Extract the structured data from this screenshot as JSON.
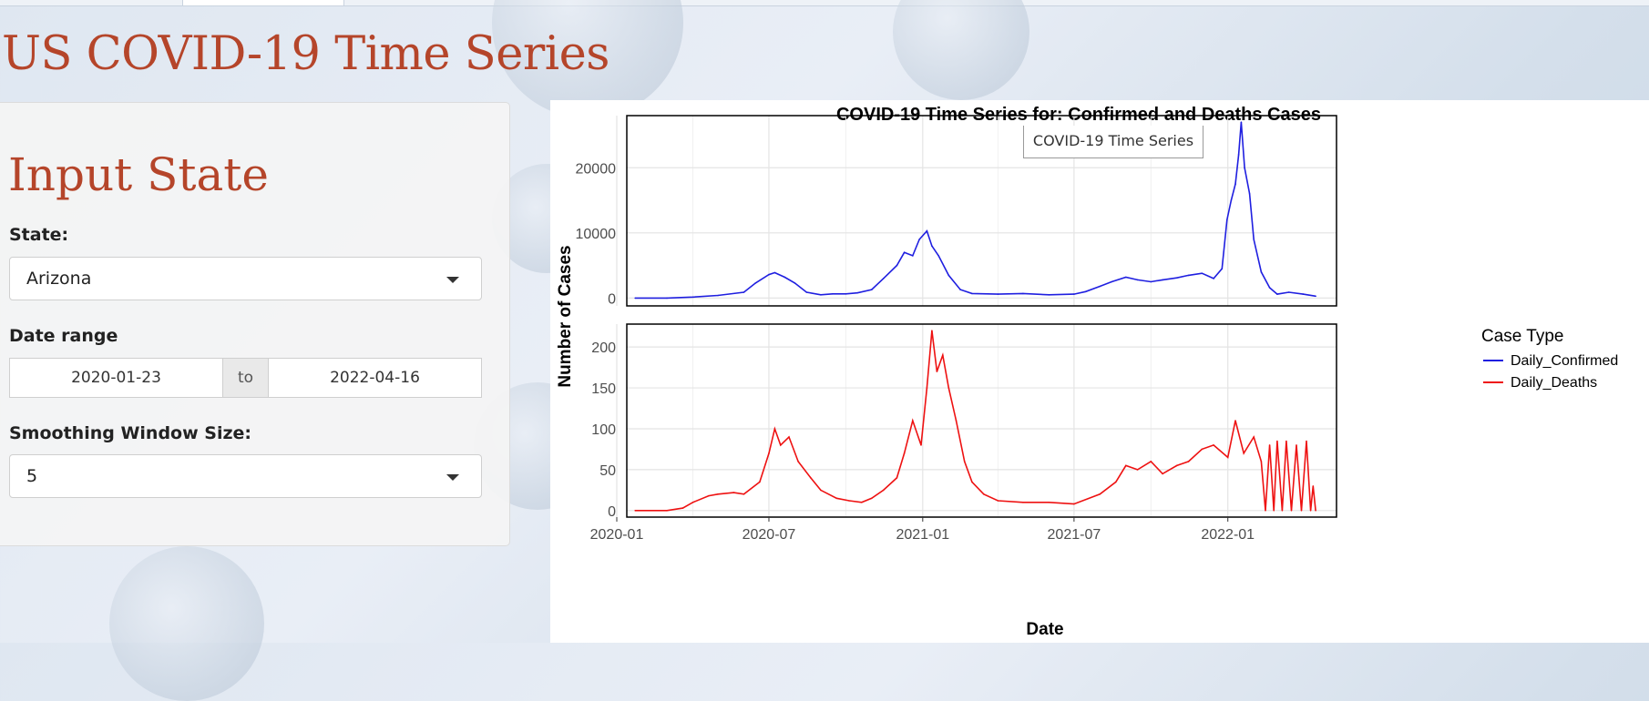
{
  "app": {
    "title": "US COVID-19 Time Series"
  },
  "sidebar": {
    "heading": "Input State",
    "state_label": "State:",
    "state_value": "Arizona",
    "date_range_label": "Date range",
    "date_start": "2020-01-23",
    "date_to": "to",
    "date_end": "2022-04-16",
    "smoothing_label": "Smoothing Window Size:",
    "smoothing_value": "5"
  },
  "tooltip": {
    "text": "COVID-19 Time Series"
  },
  "chart_data": {
    "type": "line",
    "title": "COVID-19 Time Series for: Confirmed and Deaths Cases",
    "xlabel": "Date",
    "ylabel": "Number of Cases",
    "x_ticks": [
      "2020-01",
      "2020-07",
      "2021-01",
      "2021-07",
      "2022-01"
    ],
    "xlim": [
      "2020-01-23",
      "2022-04-16"
    ],
    "grid": true,
    "legend_position": "right",
    "legend_title": "Case Type",
    "colors": {
      "Daily_Confirmed": "#1f1fe0",
      "Daily_Deaths": "#ee1111"
    },
    "panels": [
      {
        "series": "Daily_Confirmed",
        "ylim": [
          -1200,
          28000
        ],
        "y_ticks": [
          0,
          10000,
          20000
        ],
        "points": [
          [
            "2020-01-23",
            0
          ],
          [
            "2020-03-01",
            0
          ],
          [
            "2020-04-01",
            150
          ],
          [
            "2020-05-01",
            400
          ],
          [
            "2020-06-01",
            900
          ],
          [
            "2020-06-15",
            2300
          ],
          [
            "2020-07-01",
            3600
          ],
          [
            "2020-07-08",
            3900
          ],
          [
            "2020-07-20",
            3200
          ],
          [
            "2020-08-01",
            2300
          ],
          [
            "2020-08-15",
            900
          ],
          [
            "2020-09-01",
            500
          ],
          [
            "2020-09-15",
            650
          ],
          [
            "2020-10-01",
            650
          ],
          [
            "2020-10-15",
            800
          ],
          [
            "2020-11-01",
            1300
          ],
          [
            "2020-11-15",
            3000
          ],
          [
            "2020-12-01",
            5000
          ],
          [
            "2020-12-10",
            7000
          ],
          [
            "2020-12-20",
            6500
          ],
          [
            "2020-12-28",
            9000
          ],
          [
            "2021-01-06",
            10300
          ],
          [
            "2021-01-12",
            8000
          ],
          [
            "2021-01-20",
            6500
          ],
          [
            "2021-02-01",
            3500
          ],
          [
            "2021-02-15",
            1300
          ],
          [
            "2021-03-01",
            700
          ],
          [
            "2021-04-01",
            600
          ],
          [
            "2021-05-01",
            700
          ],
          [
            "2021-06-01",
            500
          ],
          [
            "2021-07-01",
            600
          ],
          [
            "2021-07-15",
            1000
          ],
          [
            "2021-08-01",
            1800
          ],
          [
            "2021-08-15",
            2500
          ],
          [
            "2021-09-01",
            3200
          ],
          [
            "2021-09-15",
            2800
          ],
          [
            "2021-10-01",
            2500
          ],
          [
            "2021-10-15",
            2800
          ],
          [
            "2021-11-01",
            3100
          ],
          [
            "2021-11-15",
            3500
          ],
          [
            "2021-12-01",
            3800
          ],
          [
            "2021-12-15",
            3000
          ],
          [
            "2021-12-25",
            4500
          ],
          [
            "2021-12-31",
            12000
          ],
          [
            "2022-01-05",
            15000
          ],
          [
            "2022-01-10",
            17500
          ],
          [
            "2022-01-14",
            22000
          ],
          [
            "2022-01-17",
            27000
          ],
          [
            "2022-01-21",
            20000
          ],
          [
            "2022-01-27",
            16000
          ],
          [
            "2022-02-01",
            9000
          ],
          [
            "2022-02-10",
            4000
          ],
          [
            "2022-02-20",
            1600
          ],
          [
            "2022-03-01",
            600
          ],
          [
            "2022-03-15",
            900
          ],
          [
            "2022-04-01",
            600
          ],
          [
            "2022-04-16",
            300
          ]
        ]
      },
      {
        "series": "Daily_Deaths",
        "ylim": [
          -8,
          228
        ],
        "y_ticks": [
          0,
          50,
          100,
          150,
          200
        ],
        "points": [
          [
            "2020-01-23",
            0
          ],
          [
            "2020-03-01",
            0
          ],
          [
            "2020-03-20",
            3
          ],
          [
            "2020-04-01",
            10
          ],
          [
            "2020-04-20",
            18
          ],
          [
            "2020-05-01",
            20
          ],
          [
            "2020-05-20",
            22
          ],
          [
            "2020-06-01",
            20
          ],
          [
            "2020-06-20",
            35
          ],
          [
            "2020-07-01",
            70
          ],
          [
            "2020-07-08",
            100
          ],
          [
            "2020-07-15",
            80
          ],
          [
            "2020-07-25",
            90
          ],
          [
            "2020-08-05",
            60
          ],
          [
            "2020-08-20",
            40
          ],
          [
            "2020-09-01",
            25
          ],
          [
            "2020-09-20",
            15
          ],
          [
            "2020-10-05",
            12
          ],
          [
            "2020-10-20",
            10
          ],
          [
            "2020-11-01",
            15
          ],
          [
            "2020-11-15",
            25
          ],
          [
            "2020-12-01",
            40
          ],
          [
            "2020-12-10",
            70
          ],
          [
            "2020-12-20",
            110
          ],
          [
            "2020-12-30",
            80
          ],
          [
            "2021-01-06",
            150
          ],
          [
            "2021-01-12",
            220
          ],
          [
            "2021-01-18",
            170
          ],
          [
            "2021-01-25",
            190
          ],
          [
            "2021-02-01",
            150
          ],
          [
            "2021-02-10",
            110
          ],
          [
            "2021-02-20",
            60
          ],
          [
            "2021-03-01",
            35
          ],
          [
            "2021-03-15",
            20
          ],
          [
            "2021-04-01",
            12
          ],
          [
            "2021-05-01",
            10
          ],
          [
            "2021-06-01",
            10
          ],
          [
            "2021-07-01",
            8
          ],
          [
            "2021-08-01",
            20
          ],
          [
            "2021-08-20",
            35
          ],
          [
            "2021-09-01",
            55
          ],
          [
            "2021-09-15",
            50
          ],
          [
            "2021-10-01",
            60
          ],
          [
            "2021-10-15",
            45
          ],
          [
            "2021-11-01",
            55
          ],
          [
            "2021-11-15",
            60
          ],
          [
            "2021-12-01",
            75
          ],
          [
            "2021-12-15",
            80
          ],
          [
            "2022-01-01",
            65
          ],
          [
            "2022-01-10",
            110
          ],
          [
            "2022-01-20",
            70
          ],
          [
            "2022-02-01",
            90
          ],
          [
            "2022-02-10",
            60
          ],
          [
            "2022-02-15",
            0
          ],
          [
            "2022-02-20",
            80
          ],
          [
            "2022-02-25",
            0
          ],
          [
            "2022-03-01",
            85
          ],
          [
            "2022-03-07",
            0
          ],
          [
            "2022-03-12",
            85
          ],
          [
            "2022-03-18",
            0
          ],
          [
            "2022-03-24",
            80
          ],
          [
            "2022-03-30",
            0
          ],
          [
            "2022-04-05",
            85
          ],
          [
            "2022-04-10",
            0
          ],
          [
            "2022-04-13",
            30
          ],
          [
            "2022-04-16",
            0
          ]
        ]
      }
    ]
  }
}
